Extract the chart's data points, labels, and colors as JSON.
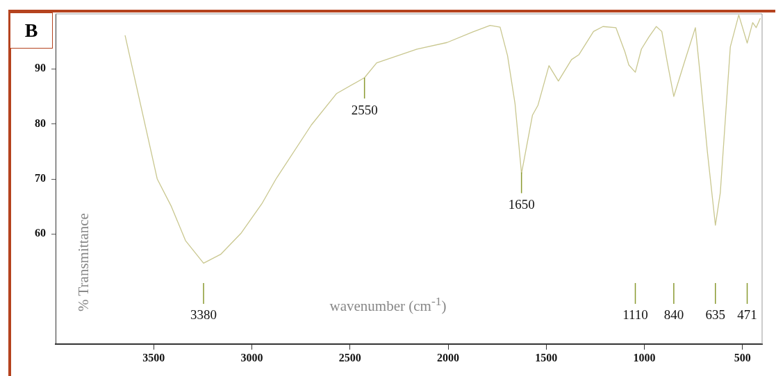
{
  "chart_data": {
    "type": "line",
    "xlabel": "wavenumber (cm$^{-1}$)",
    "ylabel": "% Transmittance",
    "xlim": [
      4000,
      400
    ],
    "xticks": [
      3500,
      3000,
      2500,
      2000,
      1500,
      1000,
      500
    ],
    "ylim": [
      40,
      100
    ],
    "yticks": [
      60,
      70,
      80,
      90
    ],
    "grid": false,
    "legend": false,
    "marker": "none",
    "line_style": "solid",
    "series": [
      {
        "color": "#c9c78f",
        "x": [
          3646,
          3482,
          3410,
          3338,
          3246,
          3159,
          3056,
          2949,
          2877,
          2697,
          2569,
          2426,
          2364,
          2159,
          2005,
          1875,
          1786,
          1735,
          1697,
          1659,
          1626,
          1570,
          1542,
          1486,
          1438,
          1371,
          1333,
          1259,
          1211,
          1145,
          1099,
          1079,
          1046,
          1015,
          977,
          939,
          911,
          883,
          850,
          796,
          740,
          717,
          679,
          638,
          613,
          562,
          519,
          476,
          448,
          430,
          409
        ],
        "values": [
          96.1,
          70.0,
          65.0,
          58.8,
          54.7,
          56.3,
          60.1,
          65.5,
          70.0,
          79.8,
          85.5,
          88.4,
          91.1,
          93.6,
          94.8,
          96.7,
          97.9,
          97.6,
          92.4,
          83.7,
          71.0,
          81.6,
          83.4,
          90.6,
          87.8,
          91.7,
          92.6,
          96.8,
          97.7,
          97.5,
          93.1,
          90.7,
          89.4,
          93.6,
          95.8,
          97.7,
          96.8,
          91.2,
          85.0,
          91.2,
          97.5,
          89.4,
          75.0,
          61.6,
          67.5,
          94.0,
          99.8,
          94.7,
          98.4,
          97.5,
          99.2
        ]
      }
    ],
    "annotations": [
      "B",
      {
        "text": "2550",
        "x": 2426,
        "y": 88.4
      },
      {
        "text": "1650",
        "x": 1626,
        "y": 71.2
      },
      {
        "text": "3380",
        "x": 3246
      },
      {
        "text": "1110",
        "x": 1046
      },
      {
        "text": "840",
        "x": 850
      },
      {
        "text": "635",
        "x": 638
      },
      {
        "text": "471",
        "x": 476
      }
    ]
  }
}
